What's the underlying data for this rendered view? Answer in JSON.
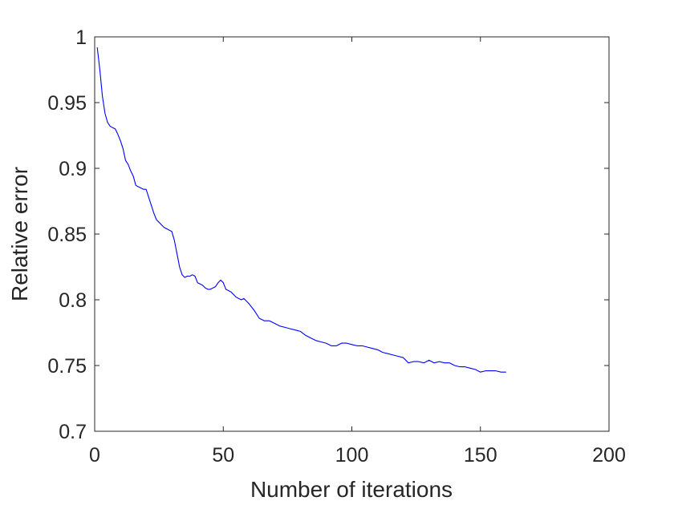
{
  "chart_data": {
    "type": "line",
    "title": "",
    "xlabel": "Number of iterations",
    "ylabel": "Relative error",
    "xlim": [
      0,
      200
    ],
    "ylim": [
      0.7,
      1
    ],
    "xticks": [
      0,
      50,
      100,
      150,
      200
    ],
    "xtick_labels": [
      "0",
      "50",
      "100",
      "150",
      "200"
    ],
    "yticks": [
      0.7,
      0.75,
      0.8,
      0.85,
      0.9,
      0.95,
      1
    ],
    "ytick_labels": [
      "0.7",
      "0.75",
      "0.8",
      "0.85",
      "0.9",
      "0.95",
      "1"
    ],
    "grid": false,
    "legend": "none",
    "series": [
      {
        "color": "#0000ff",
        "x": [
          1,
          2,
          3,
          4,
          5,
          6,
          7,
          8,
          9,
          10,
          11,
          12,
          13,
          14,
          15,
          16,
          17,
          18,
          19,
          20,
          21,
          22,
          23,
          24,
          25,
          26,
          27,
          28,
          29,
          30,
          31,
          32,
          33,
          34,
          35,
          36,
          37,
          38,
          39,
          40,
          41,
          42,
          43,
          44,
          45,
          46,
          47,
          48,
          49,
          50,
          51,
          52,
          53,
          54,
          55,
          56,
          57,
          58,
          59,
          60,
          62,
          64,
          66,
          68,
          70,
          72,
          74,
          76,
          78,
          80,
          82,
          84,
          86,
          88,
          90,
          92,
          94,
          96,
          98,
          100,
          102,
          104,
          106,
          108,
          110,
          112,
          114,
          116,
          118,
          120,
          122,
          124,
          126,
          128,
          130,
          132,
          134,
          136,
          138,
          140,
          142,
          144,
          146,
          148,
          150,
          152,
          154,
          156,
          158,
          160
        ],
        "y": [
          0.992,
          0.975,
          0.955,
          0.942,
          0.935,
          0.932,
          0.931,
          0.93,
          0.926,
          0.921,
          0.915,
          0.906,
          0.903,
          0.898,
          0.894,
          0.887,
          0.886,
          0.885,
          0.884,
          0.884,
          0.878,
          0.872,
          0.866,
          0.861,
          0.859,
          0.857,
          0.855,
          0.854,
          0.853,
          0.852,
          0.845,
          0.835,
          0.825,
          0.819,
          0.817,
          0.818,
          0.818,
          0.819,
          0.818,
          0.813,
          0.812,
          0.811,
          0.809,
          0.808,
          0.808,
          0.809,
          0.81,
          0.813,
          0.815,
          0.813,
          0.808,
          0.807,
          0.806,
          0.804,
          0.802,
          0.801,
          0.8,
          0.801,
          0.799,
          0.797,
          0.792,
          0.786,
          0.784,
          0.784,
          0.782,
          0.78,
          0.779,
          0.778,
          0.777,
          0.776,
          0.773,
          0.771,
          0.769,
          0.768,
          0.767,
          0.765,
          0.765,
          0.767,
          0.767,
          0.766,
          0.765,
          0.765,
          0.764,
          0.763,
          0.762,
          0.76,
          0.759,
          0.758,
          0.757,
          0.756,
          0.752,
          0.753,
          0.753,
          0.752,
          0.754,
          0.752,
          0.753,
          0.752,
          0.752,
          0.75,
          0.749,
          0.749,
          0.748,
          0.747,
          0.745,
          0.746,
          0.746,
          0.746,
          0.745,
          0.745
        ]
      }
    ]
  }
}
